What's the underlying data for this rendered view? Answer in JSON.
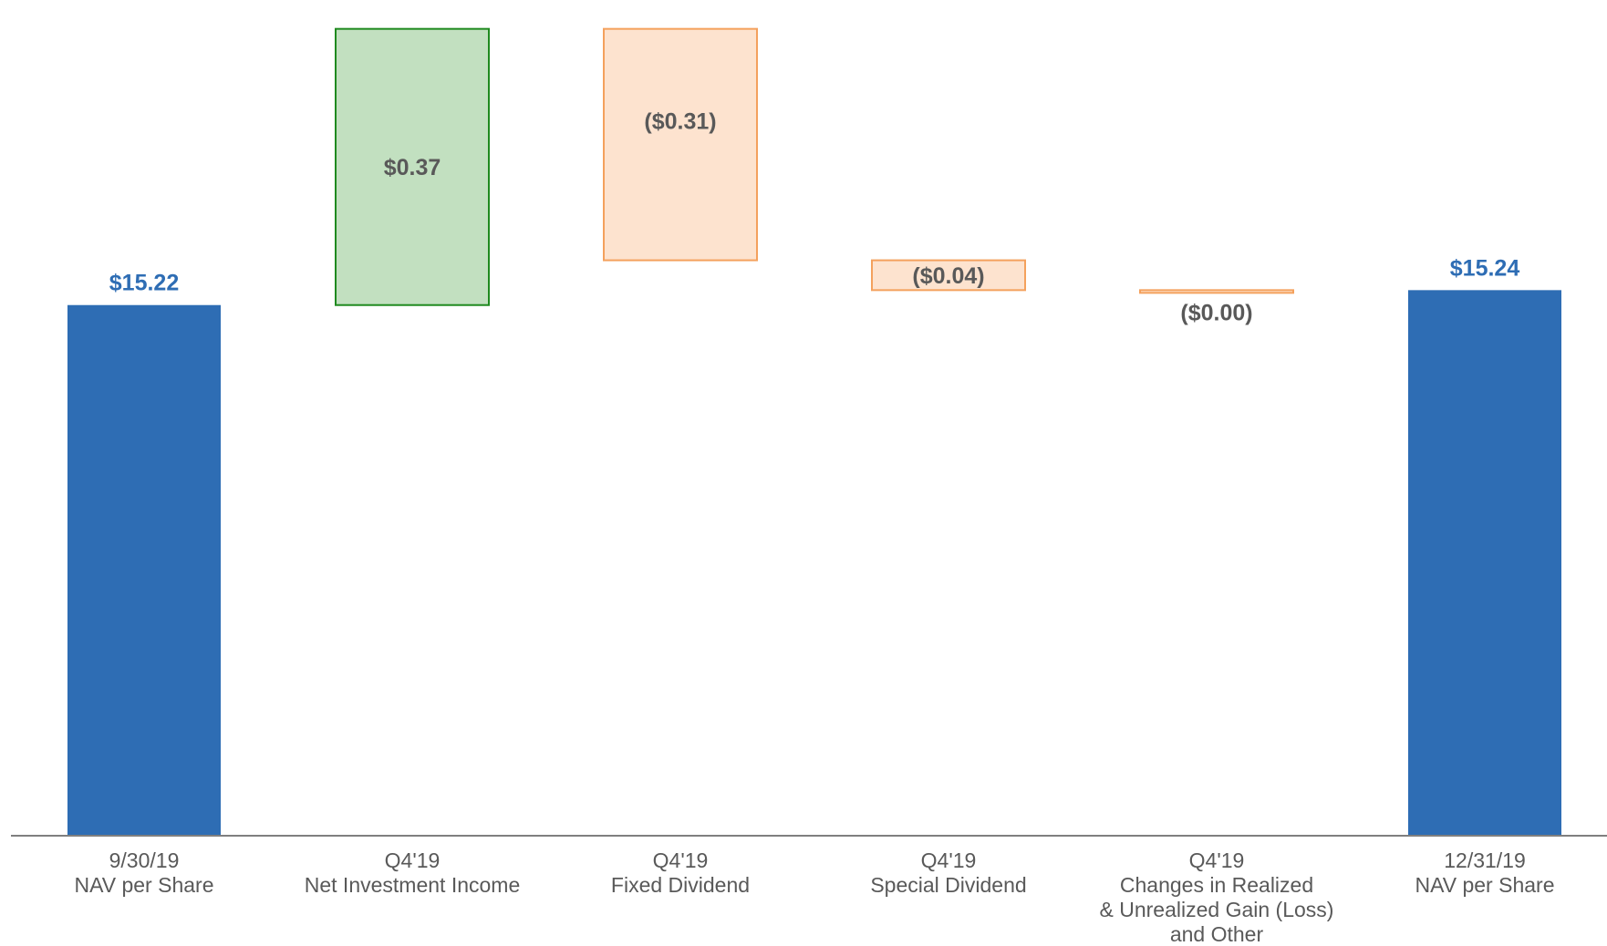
{
  "chart_data": {
    "type": "bar",
    "subtype": "waterfall",
    "categories": [
      [
        "9/30/19",
        "NAV per Share"
      ],
      [
        "Q4'19",
        "Net Investment Income"
      ],
      [
        "Q4'19",
        "Fixed Dividend"
      ],
      [
        "Q4'19",
        "Special Dividend"
      ],
      [
        "Q4'19",
        "Changes in Realized",
        "& Unrealized Gain (Loss)",
        "and Other"
      ],
      [
        "12/31/19",
        "NAV per Share"
      ]
    ],
    "values": [
      15.22,
      0.37,
      -0.31,
      -0.04,
      0.0,
      15.24
    ],
    "kinds": [
      "total",
      "increase",
      "decrease",
      "decrease",
      "decrease",
      "total"
    ],
    "value_labels": [
      "$15.22",
      "$0.37",
      "($0.31)",
      "($0.04)",
      "($0.00)",
      "$15.24"
    ],
    "ylim": [
      0,
      15.6
    ],
    "grid": false,
    "legend": "none",
    "colors": {
      "total": "#2e6db4",
      "increase_fill": "#c2e0c0",
      "increase_stroke": "#1f8a1f",
      "decrease_fill": "#fde3cf",
      "decrease_stroke": "#f4a15d",
      "axis": "#7f7f7f",
      "total_label": "#2e6db4",
      "delta_label": "#595959"
    }
  }
}
